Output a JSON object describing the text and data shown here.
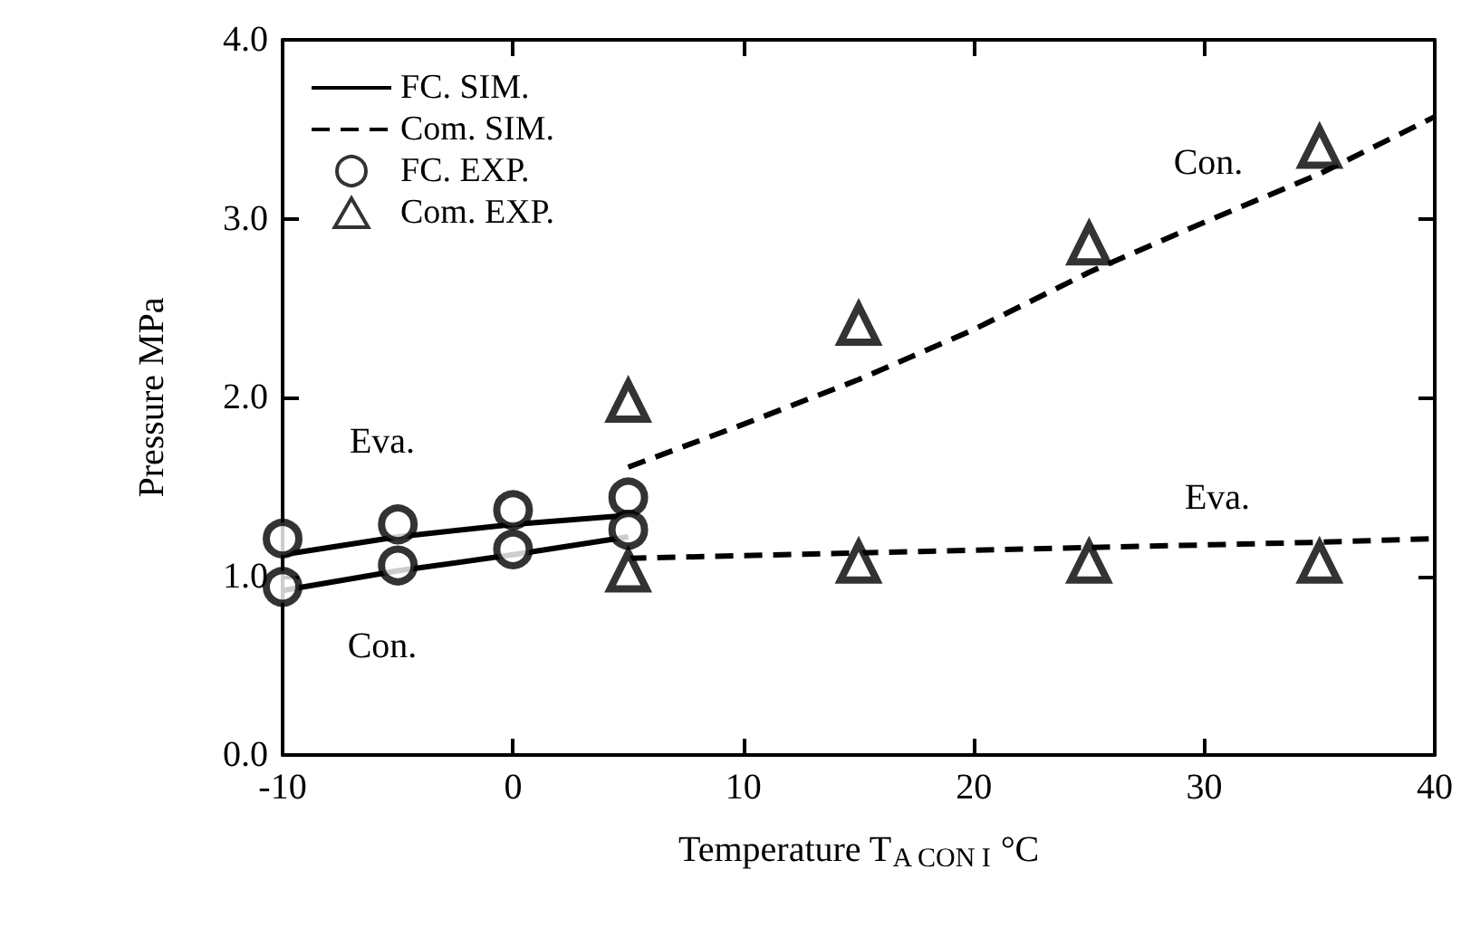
{
  "chart_data": {
    "type": "line",
    "xlabel": "Temperature T$_{A CON I}$ °C",
    "ylabel": "Pressure MPa",
    "xlim": [
      -10,
      40
    ],
    "xticks": [
      -10,
      0,
      10,
      20,
      30,
      40
    ],
    "ylim": [
      0,
      4
    ],
    "yticks": [
      {
        "value": 0,
        "label": "0.0"
      },
      {
        "value": 1,
        "label": "1.0"
      },
      {
        "value": 2,
        "label": "2.0"
      },
      {
        "value": 3,
        "label": "3.0"
      },
      {
        "value": 4,
        "label": "4.0"
      }
    ],
    "grid": false,
    "legend": "top left",
    "series": [
      {
        "name": "FC. SIM.",
        "line_style": "solid",
        "marker": "none",
        "color": "#000000",
        "x": [
          -10,
          -5,
          0,
          5
        ],
        "values": [
          1.12,
          1.22,
          1.29,
          1.34
        ]
      },
      {
        "line_style": "solid",
        "marker": "none",
        "color": "#000000",
        "x": [
          -10,
          -5,
          0,
          5
        ],
        "values": [
          0.92,
          1.03,
          1.12,
          1.22
        ]
      },
      {
        "name": "Com. SIM.",
        "line_style": "dashed",
        "marker": "none",
        "color": "#000000",
        "x": [
          5,
          10,
          15,
          20,
          25,
          30,
          35,
          40
        ],
        "values": [
          1.61,
          1.85,
          2.1,
          2.38,
          2.7,
          2.98,
          3.25,
          3.57
        ]
      },
      {
        "line_style": "dashed",
        "marker": "none",
        "color": "#000000",
        "x": [
          5,
          15,
          25,
          35,
          40
        ],
        "values": [
          1.1,
          1.13,
          1.16,
          1.19,
          1.21
        ]
      },
      {
        "name": "FC. EXP.",
        "type": "scatter",
        "marker": "circle",
        "color": "#000000",
        "x": [
          -10,
          -5,
          0,
          5
        ],
        "values": [
          1.21,
          1.29,
          1.37,
          1.44
        ]
      },
      {
        "type": "scatter",
        "marker": "circle",
        "color": "#000000",
        "x": [
          -10,
          -5,
          0,
          5
        ],
        "values": [
          0.94,
          1.06,
          1.15,
          1.26
        ]
      },
      {
        "name": "Com. EXP.",
        "type": "scatter",
        "marker": "triangle",
        "color": "#000000",
        "x": [
          5,
          15,
          25,
          35
        ],
        "values": [
          1.98,
          2.41,
          2.86,
          3.4
        ]
      },
      {
        "type": "scatter",
        "marker": "triangle",
        "color": "#000000",
        "x": [
          5,
          15,
          25,
          35
        ],
        "values": [
          1.03,
          1.08,
          1.08,
          1.08
        ]
      }
    ],
    "annotations": [
      "Eva.",
      "Con.",
      "Con.",
      "Eva."
    ]
  }
}
